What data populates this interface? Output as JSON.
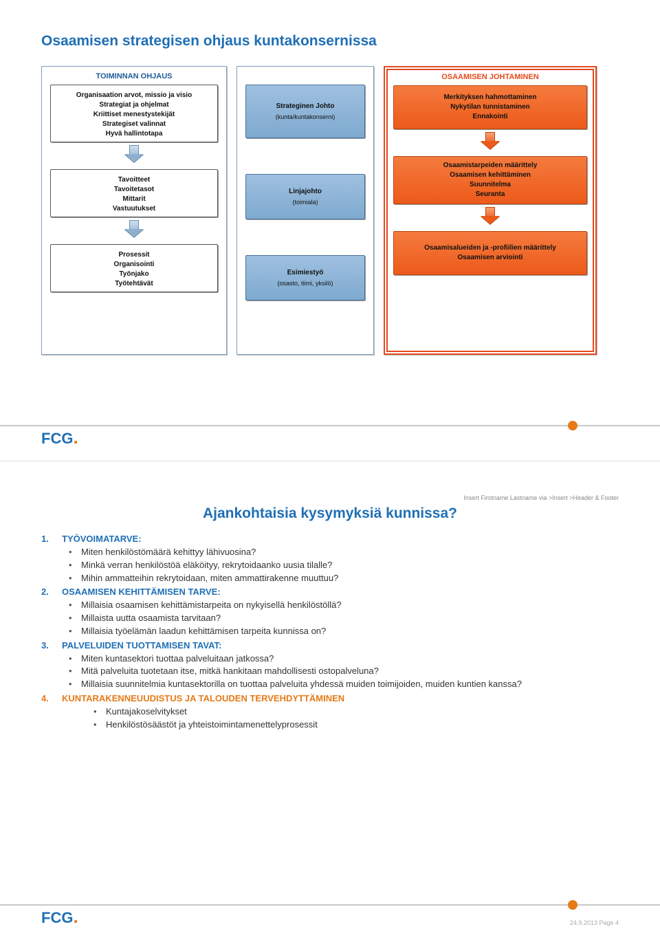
{
  "slide1": {
    "title": "Osaamisen strategisen ohjaus kuntakonsernissa",
    "colA": {
      "header": "TOIMINNAN OHJAUS",
      "box1": "Organisaation arvot, missio ja visio\nStrategiat ja ohjelmat\nKriittiset menestystekijät\nStrategiset valinnat\nHyvä hallintotapa",
      "box2": "Tavoitteet\nTavoitetasot\nMittarit\nVastuutukset",
      "box3": "Prosessit\nOrganisointi\nTyönjako\nTyötehtävät"
    },
    "colB": {
      "box1_title": "Strateginen Johto",
      "box1_sub": "(kunta/kuntakonserni)",
      "box2_title": "Linjajohto",
      "box2_sub": "(toimiala)",
      "box3_title": "Esimiestyö",
      "box3_sub": "(osasto, tiimi, yksilö)"
    },
    "colC": {
      "header": "OSAAMISEN JOHTAMINEN",
      "box1": "Merkityksen hahmottaminen\nNykytilan tunnistaminen\nEnnakointi",
      "box2": "Osaamistarpeiden määrittely\nOsaamisen kehittäminen\nSuunnitelma\nSeuranta",
      "box3": "Osaamisalueiden ja -profiilien määrittely\nOsaamisen arviointi"
    },
    "logo": "FCG"
  },
  "slide2": {
    "header_note": "Insert Firstname Lastname via >Insert >Header & Footer",
    "title": "Ajankohtaisia kysymyksiä kunnissa?",
    "items": [
      {
        "num": "1.",
        "heading": "TYÖVOIMATARVE:",
        "color": "blue",
        "bullets": [
          "Miten henkilöstömäärä kehittyy lähivuosina?",
          "Minkä verran henkilöstöä eläköityy, rekrytoidaanko uusia tilalle?",
          "Mihin ammatteihin rekrytoidaan, miten ammattirakenne muuttuu?"
        ]
      },
      {
        "num": "2.",
        "heading": "OSAAMISEN KEHITTÄMISEN TARVE:",
        "color": "blue",
        "bullets": [
          "Millaisia osaamisen kehittämistarpeita on nykyisellä henkilöstöllä?",
          "Millaista uutta osaamista tarvitaan?",
          "Millaisia työelämän laadun kehittämisen tarpeita kunnissa on?"
        ]
      },
      {
        "num": "3.",
        "heading": "PALVELUIDEN TUOTTAMISEN TAVAT:",
        "color": "blue",
        "bullets": [
          "Miten kuntasektori tuottaa palveluitaan jatkossa?",
          "Mitä palveluita tuotetaan itse, mitkä hankitaan mahdollisesti ostopalveluna?",
          "Millaisia suunnitelmia kuntasektorilla on tuottaa palveluita yhdessä muiden toimijoiden, muiden kuntien kanssa?"
        ]
      },
      {
        "num": "4.",
        "heading": "KUNTARAKENNEUUDISTUS JA TALOUDEN TERVEHDYTTÄMINEN",
        "color": "orange",
        "bullets": [
          "Kuntajakoselvitykset",
          "Henkilöstösäästöt ja yhteistoimintamenettelyprosessit"
        ],
        "sub": true
      }
    ],
    "logo": "FCG",
    "footer": "24.9.2013  Page 4"
  },
  "style": {
    "colors": {
      "title_blue": "#1f6fb5",
      "accent_orange": "#e67a17",
      "box_blue_top": "#9fc0e0",
      "box_blue_bottom": "#7eaacf",
      "box_orange_top": "#f57b3e",
      "box_orange_bottom": "#ec5a1a",
      "panel_border": "#7f9db9",
      "orange_border": "#e44a1b",
      "text": "#333333",
      "footer_grey": "#aaaaaa",
      "line_grey": "#c9c9c9"
    },
    "fonts": {
      "body": "Verdana, Arial, sans-serif",
      "title_size": 21,
      "box_size": 10,
      "list_size": 13
    }
  }
}
